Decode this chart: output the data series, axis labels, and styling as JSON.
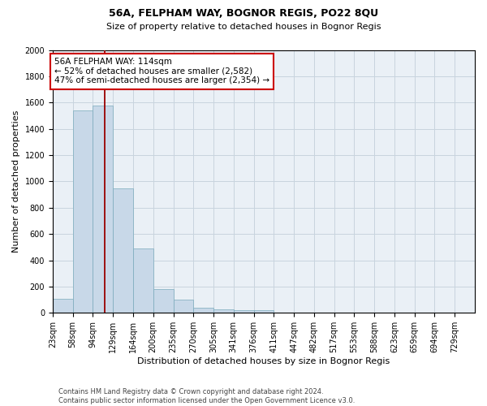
{
  "title1": "56A, FELPHAM WAY, BOGNOR REGIS, PO22 8QU",
  "title2": "Size of property relative to detached houses in Bognor Regis",
  "xlabel": "Distribution of detached houses by size in Bognor Regis",
  "ylabel": "Number of detached properties",
  "footer1": "Contains HM Land Registry data © Crown copyright and database right 2024.",
  "footer2": "Contains public sector information licensed under the Open Government Licence v3.0.",
  "bin_labels": [
    "23sqm",
    "58sqm",
    "94sqm",
    "129sqm",
    "164sqm",
    "200sqm",
    "235sqm",
    "270sqm",
    "305sqm",
    "341sqm",
    "376sqm",
    "411sqm",
    "447sqm",
    "482sqm",
    "517sqm",
    "553sqm",
    "588sqm",
    "623sqm",
    "659sqm",
    "694sqm",
    "729sqm"
  ],
  "bar_values": [
    110,
    1540,
    1580,
    950,
    490,
    180,
    100,
    40,
    28,
    18,
    18,
    0,
    0,
    0,
    0,
    0,
    0,
    0,
    0,
    0
  ],
  "bar_color": "#c8d8e8",
  "bar_edge_color": "#7aaabb",
  "grid_color": "#c8d4de",
  "bg_color": "#eaf0f6",
  "vline_color": "#990000",
  "annotation_text": "56A FELPHAM WAY: 114sqm\n← 52% of detached houses are smaller (2,582)\n47% of semi-detached houses are larger (2,354) →",
  "annotation_box_color": "#ffffff",
  "annotation_box_edge": "#cc0000",
  "ylim": [
    0,
    2000
  ],
  "yticks": [
    0,
    200,
    400,
    600,
    800,
    1000,
    1200,
    1400,
    1600,
    1800,
    2000
  ],
  "title1_fontsize": 9,
  "title2_fontsize": 8,
  "ylabel_fontsize": 8,
  "xlabel_fontsize": 8,
  "tick_fontsize": 7,
  "footer_fontsize": 6,
  "annot_fontsize": 7.5
}
